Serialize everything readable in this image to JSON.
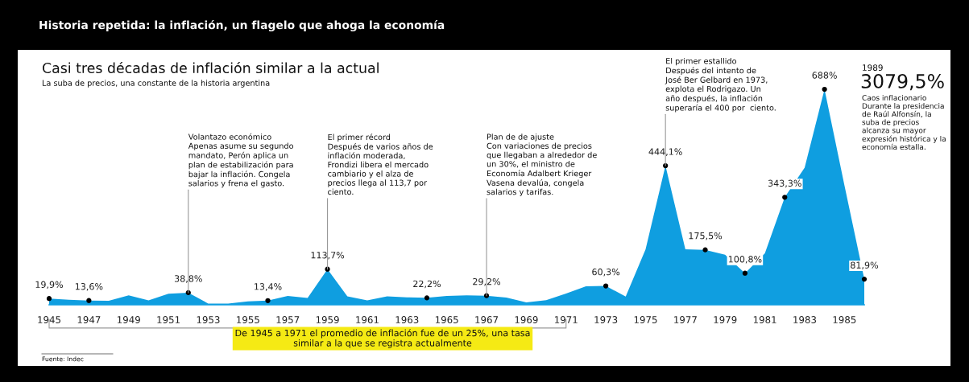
{
  "chart_data": {
    "type": "area",
    "title": "Historia repetida: la inflación, un flagelo que ahoga la economía",
    "subtitle": "Casi tres décadas de inflación similar a la actual",
    "x": [
      1945,
      1946,
      1947,
      1948,
      1949,
      1950,
      1951,
      1952,
      1953,
      1954,
      1955,
      1956,
      1957,
      1958,
      1959,
      1960,
      1961,
      1962,
      1963,
      1964,
      1965,
      1966,
      1967,
      1968,
      1969,
      1970,
      1971,
      1972,
      1973,
      1974,
      1975,
      1976,
      1977,
      1978,
      1979,
      1980,
      1981,
      1982,
      1983,
      1984,
      1985,
      1986
    ],
    "series": [
      {
        "color": "#0f9ee0",
        "values": [
          19.9,
          16,
          13.6,
          13,
          30,
          14,
          35,
          38.8,
          4,
          4,
          11,
          13.4,
          28,
          22,
          113.7,
          27,
          14,
          27,
          24,
          22.2,
          28,
          30,
          29.2,
          23,
          8,
          15,
          36,
          59,
          60.3,
          26,
          177,
          444.1,
          177,
          175.5,
          160,
          100.8,
          164,
          343.3,
          438,
          688,
          382,
          81.9
        ],
        "value_labels": [
          "19,9%",
          null,
          "13,6%",
          null,
          null,
          null,
          null,
          "38,8%",
          null,
          null,
          null,
          "13,4%",
          null,
          null,
          "113,7%",
          null,
          null,
          null,
          null,
          "22,2%",
          null,
          null,
          "29,2%",
          null,
          null,
          null,
          null,
          null,
          "60,3%",
          null,
          null,
          "444,1%",
          null,
          "175,5%",
          null,
          "100,8%",
          null,
          "343,3%",
          null,
          "688%",
          null,
          "81,9%"
        ]
      }
    ],
    "xlim": [
      1945,
      1986
    ],
    "xticks": [
      1945,
      1947,
      1949,
      1951,
      1953,
      1955,
      1957,
      1959,
      1961,
      1963,
      1965,
      1967,
      1969,
      1971,
      1973,
      1975,
      1977,
      1979,
      1981,
      1983,
      1985
    ],
    "grid": false,
    "annotations": [
      "La suba de precios, una constante de la historia argentina",
      "1989",
      "3079,5%",
      "Caos inflacionario\nDurante la presidencia\nde Raúl Alfonsín, la\nsuba de precios\nalcanza su mayor\nexpresión histórica y la\neconomía estalla.",
      "De 1945 a 1971 el promedio de inflación fue de un 25%, una tasa\nsimilar a la que se registra actualmente",
      "Fuente: Indec",
      {
        "text": "Volantazo económico\nApenas asume su segundo\nmandato, Perón aplica un\nplan de estabilización para\nbajar la inflación. Congela\nsalarios y frena el gasto.",
        "x": 1952,
        "y": 38.8
      },
      {
        "text": "El primer récord\nDespués de varios años de\ninflación moderada,\nFrondizi libera el mercado\ncambiario y el alza de\nprecios llega al 113,7 por\nciento.",
        "x": 1959,
        "y": 113.7
      },
      {
        "text": "Plan de de ajuste\nCon variaciones de precios\nque llegaban a alrededor de\nun 30%, el ministro de\nEconomía Adalbert Krieger\nVasena devalúa, congela\nsalarios y tarifas.",
        "x": 1967,
        "y": 29.2
      },
      {
        "text": "El primer estallido\nDespués del intento de\nJosé Ber Gelbard en 1973,\nexplota el Rodrigazo. Un\naño después, la inflación\nsuperaría el 400 por  ciento.",
        "x": 1976,
        "y": 444.1
      }
    ]
  }
}
